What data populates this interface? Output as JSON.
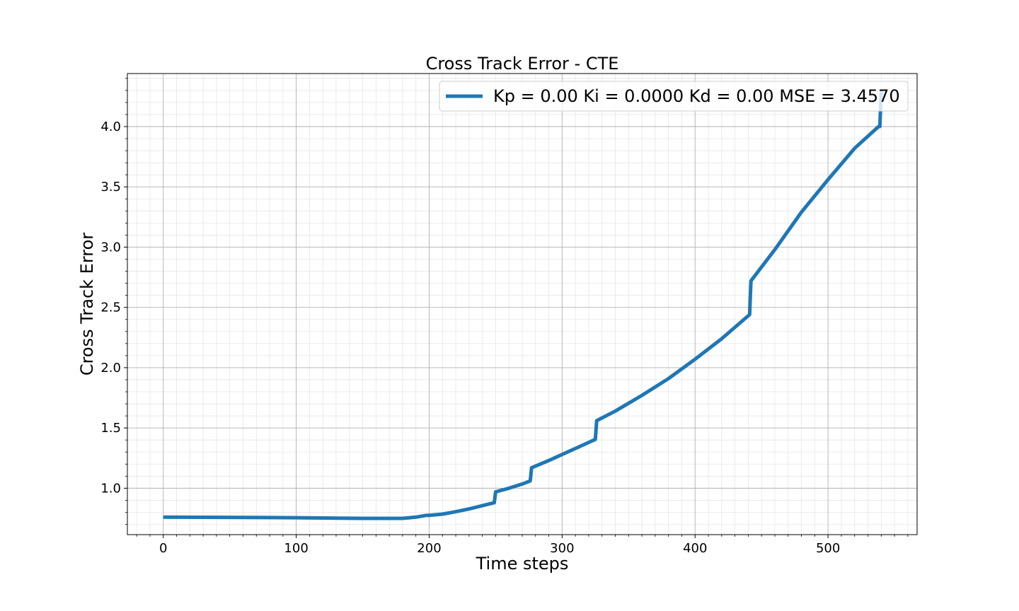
{
  "chart_data": {
    "type": "line",
    "title": "Cross Track Error - CTE",
    "xlabel": "Time steps",
    "ylabel": "Cross Track Error",
    "xlim": [
      -27,
      567
    ],
    "ylim": [
      0.615,
      4.44
    ],
    "xticks": [
      0,
      100,
      200,
      300,
      400,
      500
    ],
    "yticks": [
      1.0,
      1.5,
      2.0,
      2.5,
      3.0,
      3.5,
      4.0
    ],
    "xtick_labels": [
      "0",
      "100",
      "200",
      "300",
      "400",
      "500"
    ],
    "ytick_labels": [
      "1.0",
      "1.5",
      "2.0",
      "2.5",
      "3.0",
      "3.5",
      "4.0"
    ],
    "grid": "major and minor",
    "legend_position": "top-right",
    "colors": {
      "series": "#1f77b4",
      "major_grid": "#b0b0b0",
      "minor_grid": "#e6e6e6"
    },
    "series": [
      {
        "name": "Kp = 0.00 Ki = 0.0000 Kd = 0.00 MSE = 3.4570",
        "x": [
          0,
          50,
          100,
          150,
          180,
          190,
          198,
          200,
          210,
          220,
          230,
          240,
          249,
          250,
          260,
          270,
          276,
          277,
          290,
          300,
          310,
          320,
          325,
          326,
          340,
          360,
          380,
          400,
          420,
          441,
          442,
          460,
          480,
          500,
          520,
          538,
          539,
          540
        ],
        "y": [
          0.76,
          0.758,
          0.755,
          0.75,
          0.75,
          0.76,
          0.775,
          0.775,
          0.785,
          0.805,
          0.828,
          0.855,
          0.88,
          0.97,
          1.0,
          1.035,
          1.06,
          1.17,
          1.23,
          1.28,
          1.33,
          1.38,
          1.405,
          1.56,
          1.64,
          1.77,
          1.91,
          2.07,
          2.24,
          2.44,
          2.72,
          2.98,
          3.29,
          3.56,
          3.82,
          4.0,
          4.0,
          4.3
        ]
      }
    ]
  }
}
